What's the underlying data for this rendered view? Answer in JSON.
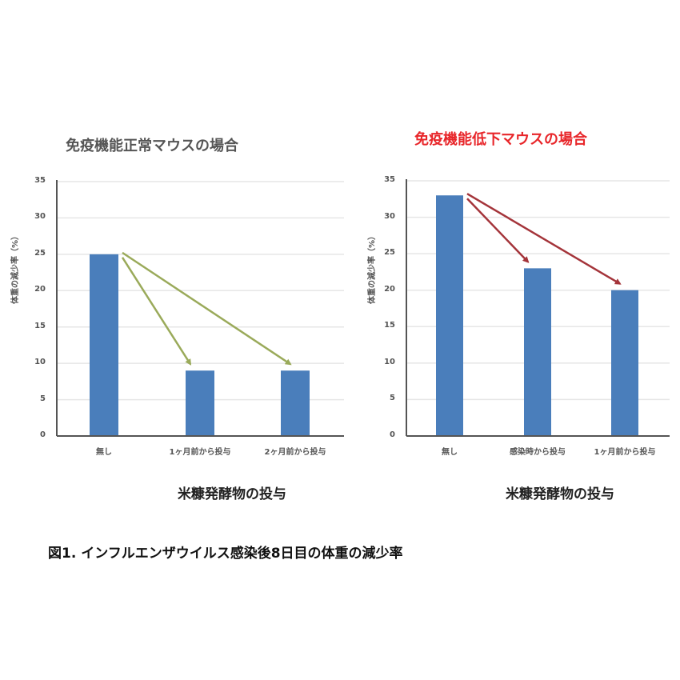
{
  "caption": "図1. インフルエンザウイルス感染後8日目の体重の減少率",
  "colors": {
    "bar": "#4a7ebb",
    "grid": "#e6e6e6",
    "axis": "#555555",
    "arrow_left": "#9aaa5a",
    "arrow_right": "#a4343a",
    "title_right": "#e8262a",
    "title_left": "#555555"
  },
  "charts": [
    {
      "title": "免疫機能正常マウスの場合",
      "ylabel": "体重の減少率（%）",
      "xlabel": "米糠発酵物の投与",
      "yticks": [
        "0",
        "5",
        "10",
        "15",
        "20",
        "25",
        "30",
        "35"
      ],
      "categories": [
        "無し",
        "1ヶ月前から投与",
        "2ヶ月前から投与"
      ],
      "values": [
        25,
        9,
        9
      ]
    },
    {
      "title": "免疫機能低下マウスの場合",
      "ylabel": "体重の減少率（%）",
      "xlabel": "米糠発酵物の投与",
      "yticks": [
        "0",
        "5",
        "10",
        "15",
        "20",
        "25",
        "30",
        "35"
      ],
      "categories": [
        "無し",
        "感染時から投与",
        "1ヶ月前から投与"
      ],
      "values": [
        33,
        23,
        20
      ]
    }
  ],
  "chart_data": [
    {
      "type": "bar",
      "title": "免疫機能正常マウスの場合",
      "xlabel": "米糠発酵物の投与",
      "ylabel": "体重の減少率（%）",
      "categories": [
        "無し",
        "1ヶ月前から投与",
        "2ヶ月前から投与"
      ],
      "values": [
        25,
        9,
        9
      ],
      "ylim": [
        0,
        35
      ],
      "yticks": [
        0,
        5,
        10,
        15,
        20,
        25,
        30,
        35
      ],
      "grid": true,
      "legend": "none",
      "annotations": [
        {
          "type": "arrow",
          "from": "無し",
          "to": "1ヶ月前から投与",
          "color": "#9aaa5a"
        },
        {
          "type": "arrow",
          "from": "無し",
          "to": "2ヶ月前から投与",
          "color": "#9aaa5a"
        }
      ]
    },
    {
      "type": "bar",
      "title": "免疫機能低下マウスの場合",
      "xlabel": "米糠発酵物の投与",
      "ylabel": "体重の減少率（%）",
      "categories": [
        "無し",
        "感染時から投与",
        "1ヶ月前から投与"
      ],
      "values": [
        33,
        23,
        20
      ],
      "ylim": [
        0,
        35
      ],
      "yticks": [
        0,
        5,
        10,
        15,
        20,
        25,
        30,
        35
      ],
      "grid": true,
      "legend": "none",
      "annotations": [
        {
          "type": "arrow",
          "from": "無し",
          "to": "感染時から投与",
          "color": "#a4343a"
        },
        {
          "type": "arrow",
          "from": "無し",
          "to": "1ヶ月前から投与",
          "color": "#a4343a"
        }
      ]
    }
  ]
}
